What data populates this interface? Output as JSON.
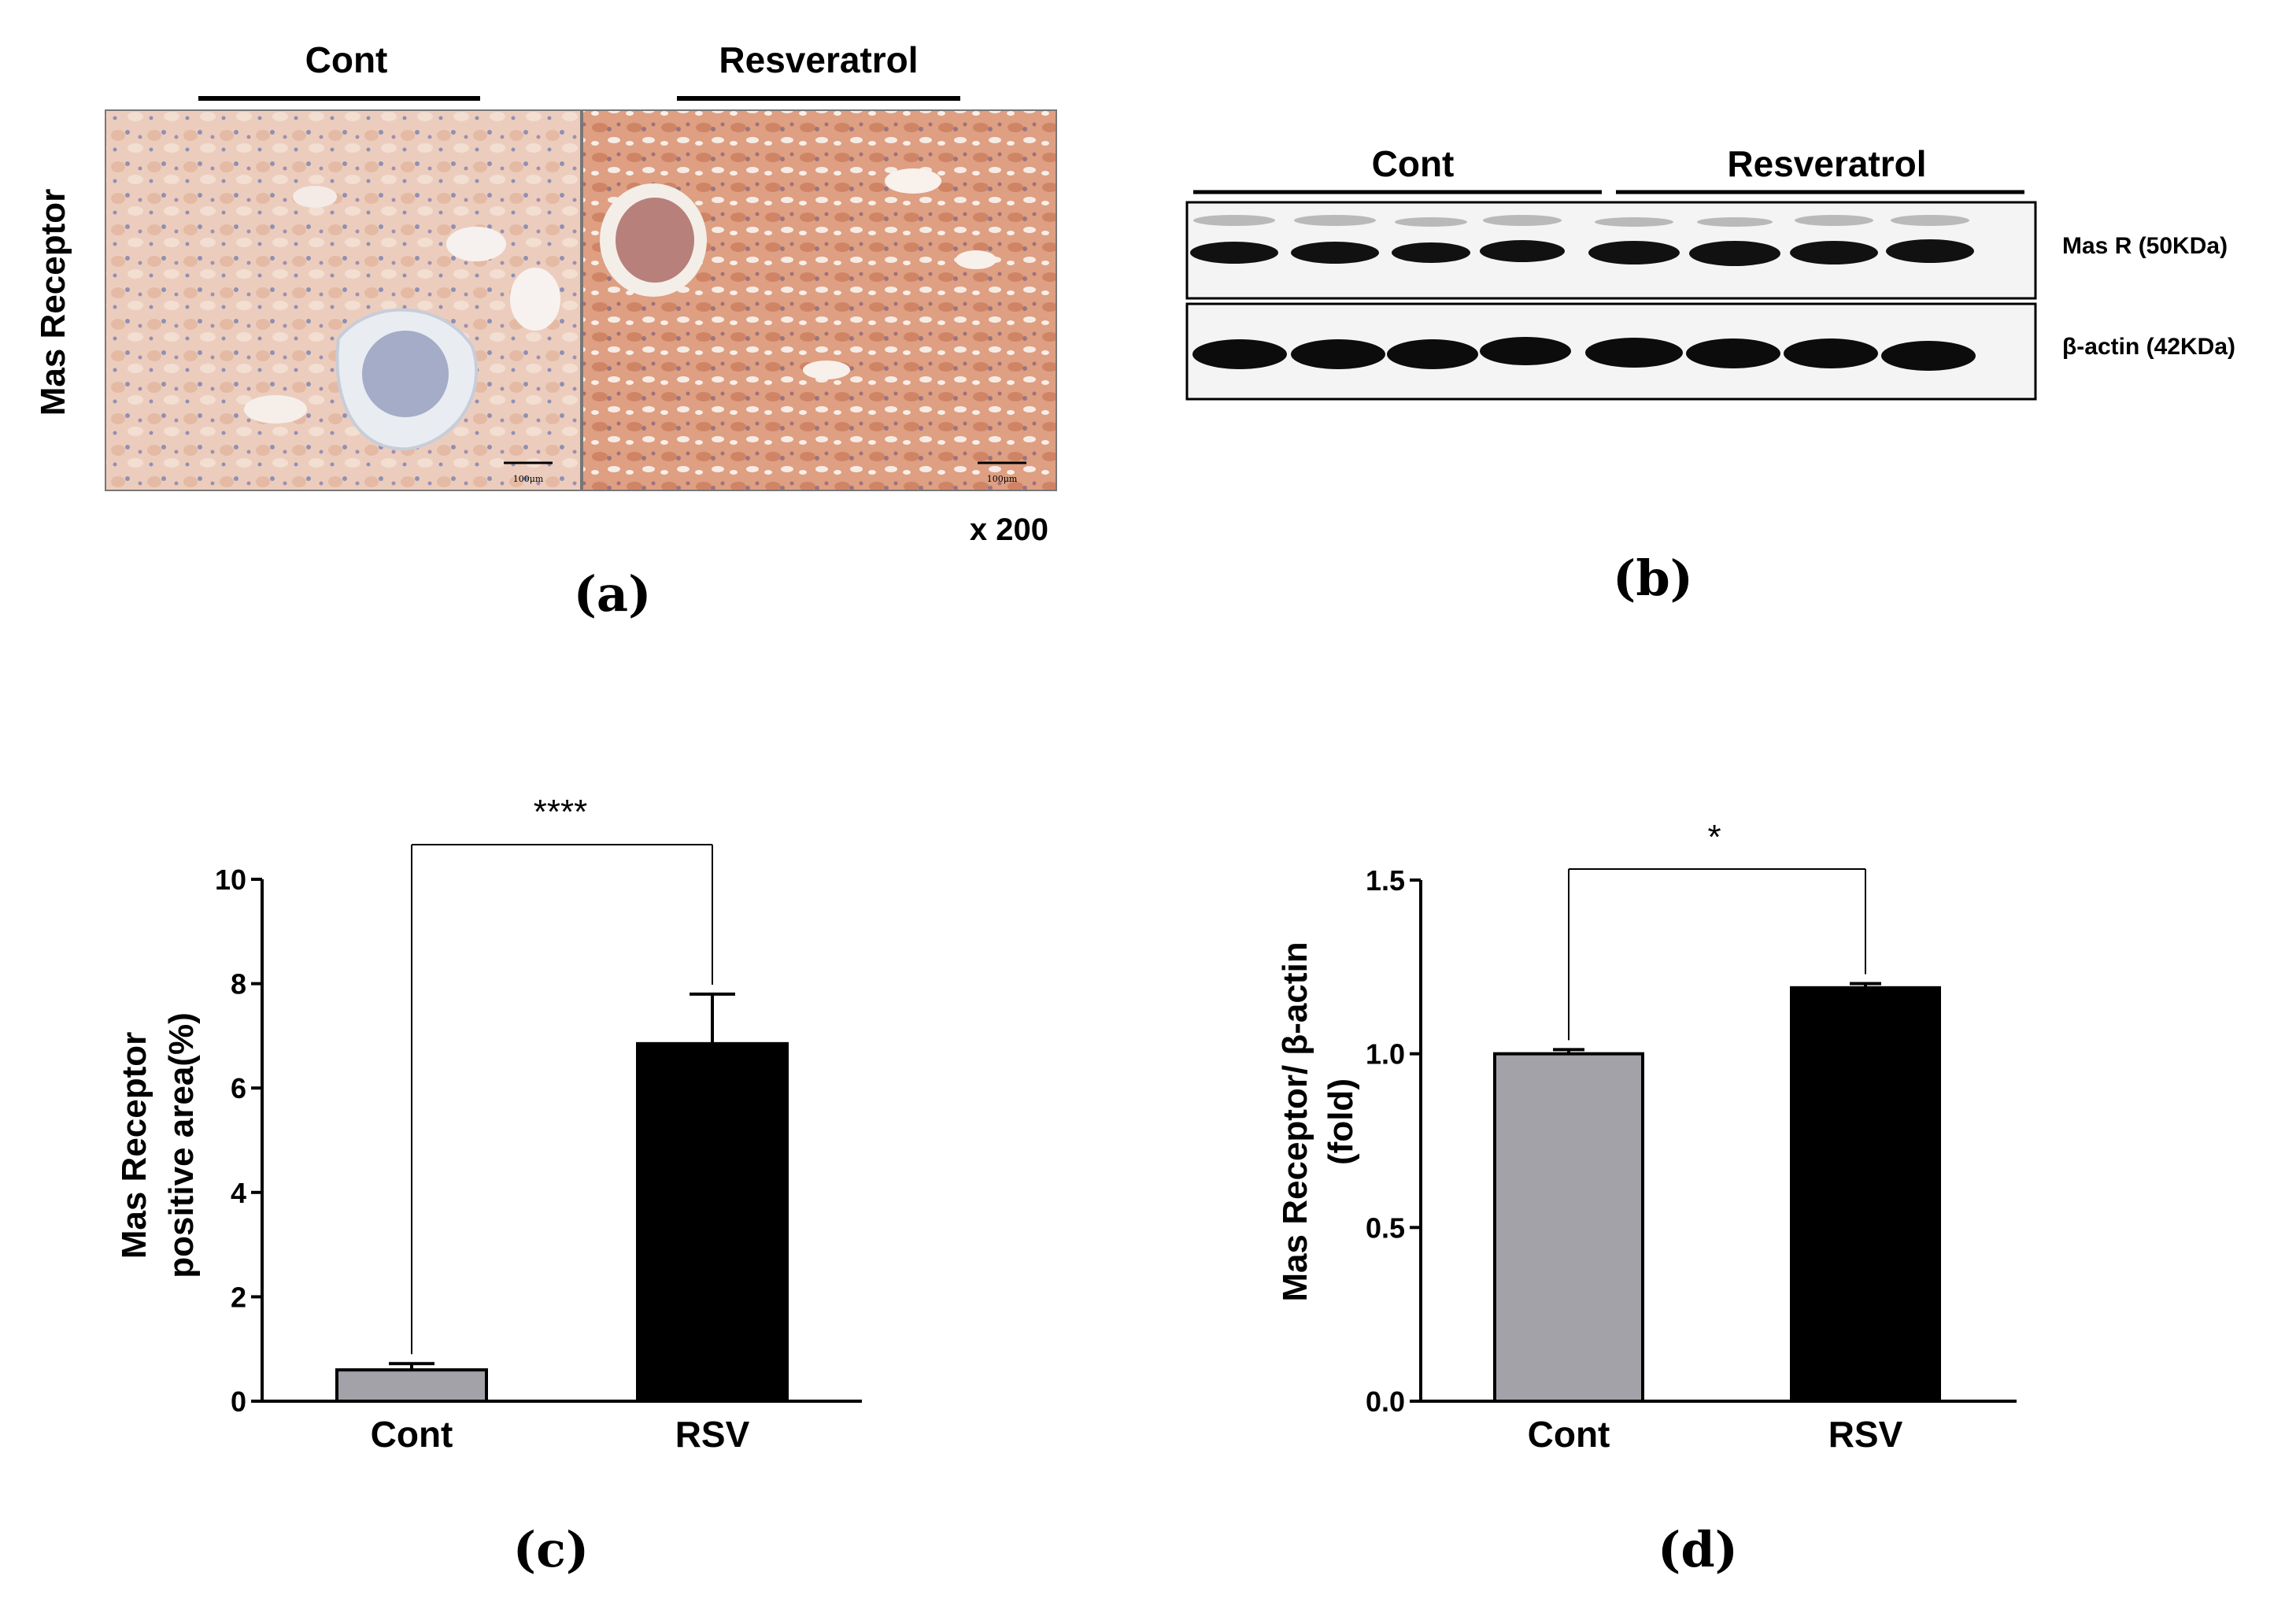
{
  "panel_a": {
    "row_label": "Mas Receptor",
    "groups": [
      "Cont",
      "Resveratrol"
    ],
    "scale_bar_label": "100μm",
    "magnification": "x 200",
    "caption": "(a)"
  },
  "panel_b": {
    "groups": [
      "Cont",
      "Resveratrol"
    ],
    "bands": [
      "Mas R (50KDa)",
      "β-actin (42KDa)"
    ],
    "lanes_per_group": 4,
    "caption": "(b)"
  },
  "chart_data": [
    {
      "type": "bar",
      "panel": "c",
      "categories": [
        "Cont",
        "RSV"
      ],
      "values": [
        0.6,
        6.85
      ],
      "errors": [
        0.12,
        0.95
      ],
      "colors": [
        "#a2a2a8",
        "#000000"
      ],
      "ylabel_line1": "Mas Receptor",
      "ylabel_line2": "positive area(%)",
      "ylim": [
        0,
        10
      ],
      "yticks": [
        0,
        2,
        4,
        6,
        8,
        10
      ],
      "ytick_labels": [
        "0",
        "2",
        "4",
        "6",
        "8",
        "10"
      ],
      "significance": "****",
      "caption": "(c)"
    },
    {
      "type": "bar",
      "panel": "d",
      "categories": [
        "Cont",
        "RSV"
      ],
      "values": [
        1.0,
        1.19
      ],
      "errors": [
        0.012,
        0.012
      ],
      "colors": [
        "#a2a2a8",
        "#000000"
      ],
      "ylabel_line1": "Mas Receptor/ β-actin",
      "ylabel_line2": "(fold)",
      "ylim": [
        0,
        1.5
      ],
      "yticks": [
        0,
        0.5,
        1.0,
        1.5
      ],
      "ytick_labels": [
        "0.0",
        "0.5",
        "1.0",
        "1.5"
      ],
      "significance": "*",
      "caption": "(d)"
    }
  ]
}
